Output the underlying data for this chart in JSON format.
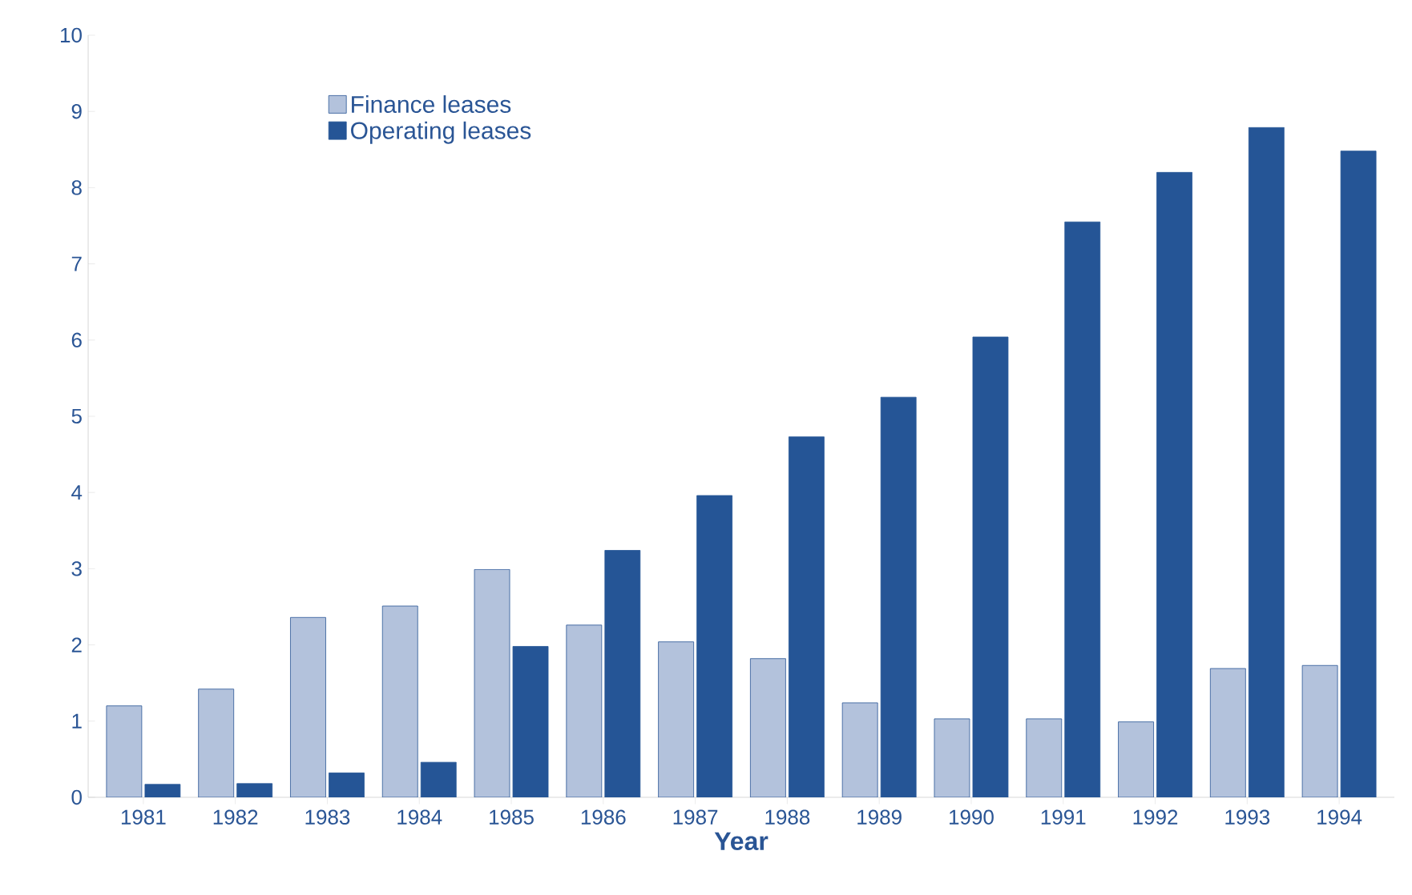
{
  "chart_data": {
    "type": "bar",
    "xlabel": "Year",
    "categories": [
      "1981",
      "1982",
      "1983",
      "1984",
      "1985",
      "1986",
      "1987",
      "1988",
      "1989",
      "1990",
      "1991",
      "1992",
      "1993",
      "1994"
    ],
    "series": [
      {
        "name": "Finance leases",
        "color": "#b3c2dc",
        "values": [
          1.2,
          1.42,
          2.36,
          2.51,
          2.99,
          2.26,
          2.04,
          1.82,
          1.24,
          1.03,
          1.03,
          0.99,
          1.69,
          1.73
        ]
      },
      {
        "name": "Operating leases",
        "color": "#255596",
        "values": [
          0.17,
          0.18,
          0.32,
          0.46,
          1.98,
          3.24,
          3.96,
          4.73,
          5.25,
          6.04,
          7.55,
          8.2,
          8.79,
          8.48
        ]
      }
    ],
    "ylim": [
      0,
      10
    ],
    "yticks": [
      0,
      1,
      2,
      3,
      4,
      5,
      6,
      7,
      8,
      9,
      10
    ],
    "grid": false,
    "legend": "top left"
  }
}
